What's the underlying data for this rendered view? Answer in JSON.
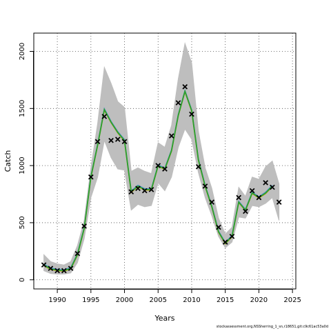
{
  "chart_data": {
    "type": "line",
    "title": "",
    "xlabel": "Years",
    "ylabel": "Catch",
    "xlim": [
      1986.5,
      2025.5
    ],
    "ylim": [
      -80,
      2160
    ],
    "x_ticks": [
      1990,
      1995,
      2000,
      2005,
      2010,
      2015,
      2020,
      2025
    ],
    "y_ticks": [
      0,
      500,
      1000,
      1500,
      2000
    ],
    "grid": true,
    "grid_style": "dotted",
    "colors": {
      "band": "#bebebe",
      "line_main": "#2ca02c",
      "line_overlay": "#d4a017",
      "line_recent": "#4f8fd0",
      "observed": "#000000"
    },
    "confidence_band": {
      "x": [
        1988,
        1989,
        1990,
        1991,
        1992,
        1993,
        1994,
        1995,
        1996,
        1997,
        1998,
        1999,
        2000,
        2001,
        2002,
        2003,
        2004,
        2005,
        2006,
        2007,
        2008,
        2009,
        2010,
        2011,
        2012,
        2013,
        2014,
        2015,
        2016,
        2017,
        2018,
        2019,
        2020,
        2021,
        2022,
        2023
      ],
      "lower": [
        80,
        55,
        50,
        50,
        60,
        150,
        360,
        720,
        900,
        1220,
        1070,
        970,
        960,
        610,
        660,
        640,
        650,
        850,
        780,
        900,
        1160,
        1320,
        1230,
        940,
        720,
        560,
        380,
        280,
        330,
        550,
        540,
        650,
        640,
        670,
        720,
        520
      ],
      "upper": [
        220,
        160,
        140,
        130,
        160,
        300,
        520,
        980,
        1370,
        1860,
        1720,
        1560,
        1510,
        950,
        980,
        950,
        930,
        1200,
        1160,
        1350,
        1760,
        2070,
        1900,
        1300,
        980,
        800,
        540,
        400,
        460,
        810,
        730,
        900,
        880,
        990,
        1040,
        840
      ]
    },
    "series": [
      {
        "type": "line",
        "x": [
          1988,
          1989,
          1990,
          1991,
          1992,
          1993,
          1994,
          1995,
          1996,
          1997,
          1998,
          1999,
          2000,
          2001,
          2002,
          2003,
          2004,
          2005,
          2006,
          2007,
          2008,
          2009,
          2010,
          2011,
          2012,
          2013,
          2014,
          2015,
          2016,
          2017,
          2018,
          2019,
          2020,
          2021,
          2022
        ],
        "values": [
          130,
          95,
          85,
          80,
          100,
          220,
          450,
          900,
          1180,
          1490,
          1380,
          1290,
          1220,
          770,
          820,
          790,
          790,
          1000,
          970,
          1130,
          1440,
          1650,
          1480,
          1050,
          820,
          640,
          420,
          320,
          380,
          680,
          610,
          760,
          720,
          760,
          820
        ]
      },
      {
        "type": "scatter",
        "marker": "x",
        "x": [
          1988,
          1989,
          1990,
          1991,
          1992,
          1993,
          1994,
          1995,
          1996,
          1997,
          1998,
          1999,
          2000,
          2001,
          2002,
          2003,
          2004,
          2005,
          2006,
          2007,
          2008,
          2009,
          2010,
          2011,
          2012,
          2013,
          2014,
          2015,
          2016,
          2017,
          2018,
          2019,
          2020,
          2021,
          2022,
          2023
        ],
        "values": [
          130,
          100,
          80,
          80,
          100,
          230,
          470,
          900,
          1210,
          1430,
          1220,
          1230,
          1210,
          770,
          800,
          780,
          790,
          1000,
          970,
          1260,
          1550,
          1690,
          1450,
          990,
          820,
          680,
          460,
          330,
          380,
          720,
          600,
          780,
          720,
          850,
          810,
          680
        ]
      }
    ]
  },
  "footer": {
    "caption": "stockassessment.org,NSSherring_1_sn,r18651,git:c9c61ac53a0d"
  }
}
